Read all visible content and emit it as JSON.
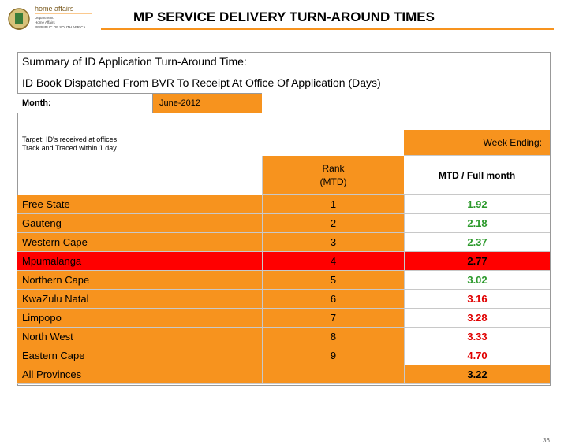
{
  "header": {
    "title": "MP SERVICE DELIVERY TURN-AROUND TIMES",
    "logo": {
      "name": "home affairs",
      "lines": [
        "Department:",
        "Home Affairs",
        "REPUBLIC OF SOUTH AFRICA"
      ]
    }
  },
  "summary": {
    "line1": "Summary of ID Application Turn-Around Time:",
    "line2": "ID Book Dispatched From BVR To Receipt At Office Of Application (Days)"
  },
  "month": {
    "label": "Month:",
    "value": "June-2012"
  },
  "target": {
    "lines": [
      "Target: ID's received at offices",
      "Track and Traced within 1 day"
    ]
  },
  "week_ending": "Week Ending:",
  "table": {
    "headers": [
      "Rank (MTD)",
      "MTD / Full month"
    ],
    "rows": [
      [
        "Free State",
        1,
        "1.92"
      ],
      [
        "Gauteng",
        2,
        "2.18"
      ],
      [
        "Western Cape",
        3,
        "2.37"
      ],
      [
        "Mpumalanga",
        4,
        "2.77"
      ],
      [
        "Northern Cape",
        5,
        "3.02"
      ],
      [
        "KwaZulu Natal",
        6,
        "3.16"
      ],
      [
        "Limpopo",
        7,
        "3.28"
      ],
      [
        "North West",
        8,
        "3.33"
      ],
      [
        "Eastern Cape",
        9,
        "4.70"
      ],
      [
        "All Provinces",
        null,
        "3.22"
      ]
    ]
  },
  "page_number": "36"
}
